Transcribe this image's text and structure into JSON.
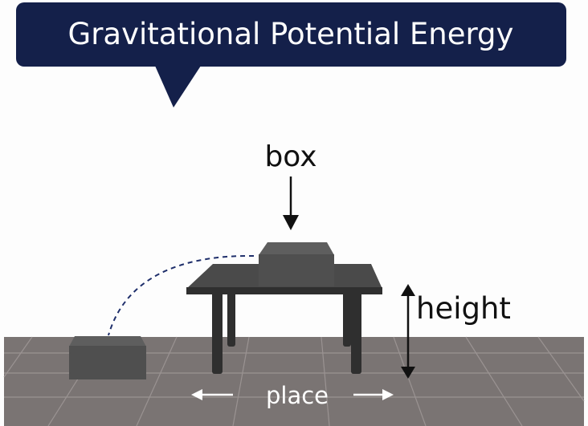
{
  "title": "Gravitational Potential Energy",
  "labels": {
    "box": "box",
    "height": "height",
    "place": "place"
  },
  "colors": {
    "banner": "#14204a",
    "floor": "#7a7473",
    "floor_lines": "#9a9392",
    "table_top": "#4a4a4a",
    "table_legs": "#2f2f2f",
    "box": "#4f4f4f",
    "text": "#111111",
    "place_text": "#ffffff"
  }
}
